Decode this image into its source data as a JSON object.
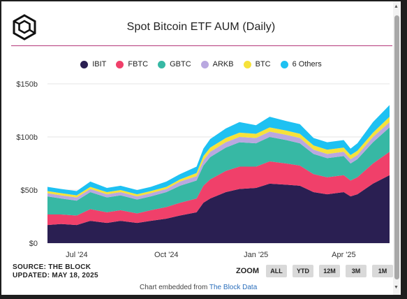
{
  "title": "Spot Bitcoin ETF AUM (Daily)",
  "legend": [
    {
      "name": "IBIT",
      "color": "#2a1f52"
    },
    {
      "name": "FBTC",
      "color": "#f0406a"
    },
    {
      "name": "GBTC",
      "color": "#37b8a4"
    },
    {
      "name": "ARKB",
      "color": "#b9a8e0"
    },
    {
      "name": "BTC",
      "color": "#f6e23a"
    },
    {
      "name": "6 Others",
      "color": "#1ec1f2"
    }
  ],
  "footer": {
    "source": "SOURCE: THE BLOCK",
    "updated": "UPDATED: MAY 18, 2025"
  },
  "zoom": {
    "label": "ZOOM",
    "buttons": [
      "ALL",
      "YTD",
      "12M",
      "3M",
      "1M"
    ]
  },
  "credit": {
    "prefix": "Chart embedded from",
    "link": "The Block Data"
  },
  "chart_data": {
    "type": "area",
    "stacked": true,
    "x": [
      "2024-06-01",
      "2024-06-15",
      "2024-07-01",
      "2024-07-15",
      "2024-08-01",
      "2024-08-15",
      "2024-09-01",
      "2024-09-15",
      "2024-10-01",
      "2024-10-15",
      "2024-11-01",
      "2024-11-08",
      "2024-11-15",
      "2024-12-01",
      "2024-12-15",
      "2025-01-01",
      "2025-01-15",
      "2025-02-01",
      "2025-02-15",
      "2025-03-01",
      "2025-03-15",
      "2025-04-01",
      "2025-04-08",
      "2025-04-15",
      "2025-05-01",
      "2025-05-18"
    ],
    "series": [
      {
        "name": "IBIT",
        "values": [
          17,
          18,
          17,
          21,
          19,
          21,
          19,
          21,
          23,
          26,
          29,
          38,
          42,
          48,
          51,
          52,
          56,
          55,
          54,
          48,
          46,
          48,
          44,
          46,
          56,
          64
        ]
      },
      {
        "name": "FBTC",
        "values": [
          10,
          9,
          9,
          11,
          10,
          10,
          9,
          10,
          11,
          12,
          13,
          16,
          18,
          20,
          21,
          20,
          21,
          20,
          19,
          17,
          16,
          16,
          15,
          16,
          19,
          22
        ]
      },
      {
        "name": "GBTC",
        "values": [
          17,
          15,
          14,
          16,
          14,
          14,
          13,
          13,
          14,
          16,
          17,
          19,
          21,
          22,
          23,
          22,
          23,
          22,
          21,
          19,
          18,
          18,
          16,
          17,
          20,
          23
        ]
      },
      {
        "name": "ARKB",
        "values": [
          3,
          3,
          3,
          3,
          3,
          3,
          3,
          3,
          3,
          4,
          4,
          5,
          5,
          5,
          5,
          5,
          5,
          5,
          5,
          4,
          4,
          4,
          4,
          4,
          5,
          5
        ]
      },
      {
        "name": "BTC",
        "values": [
          2,
          2,
          2,
          2,
          2,
          2,
          2,
          2,
          2,
          2,
          3,
          4,
          4,
          4,
          4,
          4,
          4,
          4,
          4,
          4,
          4,
          4,
          4,
          4,
          4,
          5
        ]
      },
      {
        "name": "6 Others",
        "values": [
          4,
          4,
          4,
          5,
          4,
          4,
          4,
          4,
          5,
          5,
          6,
          7,
          8,
          9,
          10,
          8,
          10,
          9,
          9,
          7,
          7,
          7,
          6,
          7,
          10,
          11
        ]
      }
    ],
    "y_ticks": [
      "$0",
      "$50b",
      "$100b",
      "$150b"
    ],
    "x_ticks": [
      {
        "date": "2024-07-01",
        "label": "Jul '24"
      },
      {
        "date": "2024-10-01",
        "label": "Oct '24"
      },
      {
        "date": "2025-01-01",
        "label": "Jan '25"
      },
      {
        "date": "2025-04-01",
        "label": "Apr '25"
      }
    ],
    "ylim": [
      0,
      150
    ],
    "xlim": [
      "2024-06-01",
      "2025-05-18"
    ],
    "grid": true,
    "legend_position": "top"
  }
}
